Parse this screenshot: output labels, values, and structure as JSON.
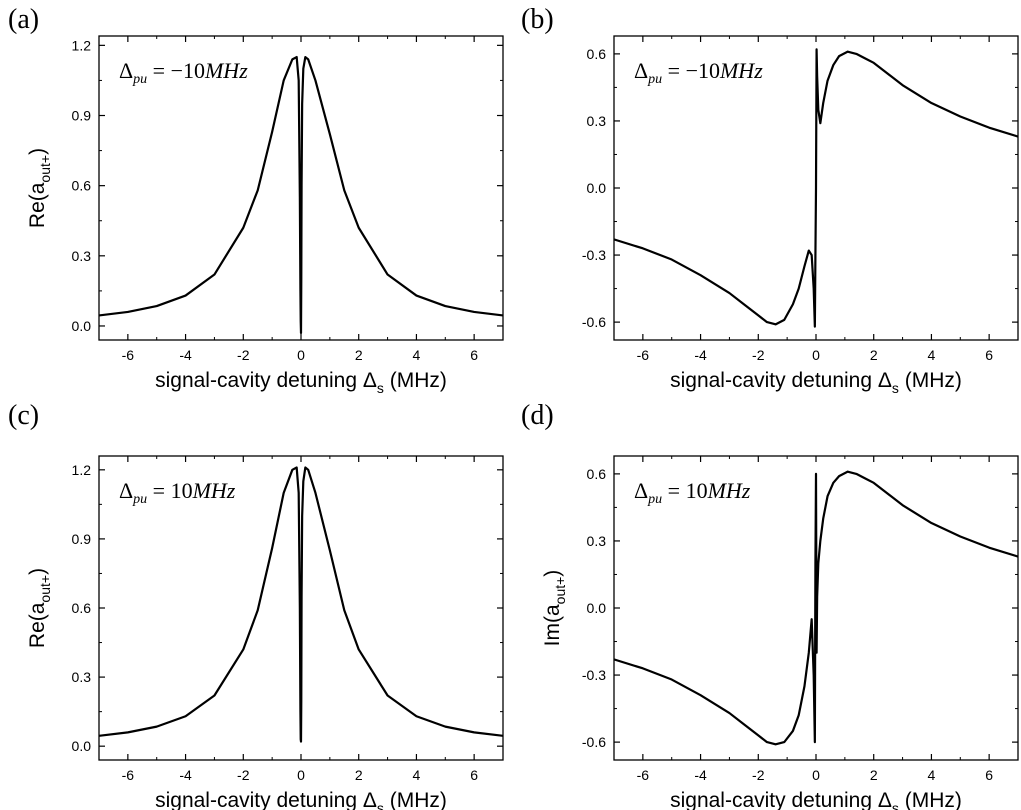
{
  "figure": {
    "axis_color": "#000000",
    "line_color": "#000000",
    "background": "#ffffff"
  },
  "chart_data": [
    {
      "panel_label": "(a)",
      "type": "line",
      "ylabel": "Re(a",
      "ylabel_sub": "out+",
      "ylabel_close": ")",
      "xlabel": "signal-cavity detuning Δ",
      "xlabel_sub": "s",
      "xlabel_unit": " (MHz)",
      "annotation": {
        "delta": "Δ",
        "sub": "pu",
        "text": " = −10",
        "unit": "MHz"
      },
      "xlim": [
        -7,
        7
      ],
      "ylim": [
        -0.06,
        1.24
      ],
      "xticks": [
        -6,
        -4,
        -2,
        0,
        2,
        4,
        6
      ],
      "xtick_labels": [
        "-6",
        "-4",
        "-2",
        "0",
        "2",
        "4",
        "6"
      ],
      "yticks": [
        0.0,
        0.3,
        0.6,
        0.9,
        1.2
      ],
      "ytick_labels": [
        "0.0",
        "0.3",
        "0.6",
        "0.9",
        "1.2"
      ],
      "series": [
        {
          "x": [
            -7,
            -6,
            -5,
            -4,
            -3,
            -2,
            -1.5,
            -1,
            -0.6,
            -0.3,
            -0.15,
            -0.08,
            -0.04,
            -0.02,
            -0.01,
            0,
            0.01,
            0.02,
            0.04,
            0.08,
            0.15,
            0.25,
            0.5,
            1,
            1.5,
            2,
            3,
            4,
            5,
            6,
            7
          ],
          "y": [
            0.045,
            0.06,
            0.085,
            0.13,
            0.22,
            0.42,
            0.58,
            0.83,
            1.05,
            1.14,
            1.15,
            1.05,
            0.55,
            0.15,
            0.02,
            -0.03,
            0.2,
            0.6,
            0.95,
            1.1,
            1.15,
            1.14,
            1.05,
            0.82,
            0.58,
            0.42,
            0.22,
            0.13,
            0.085,
            0.06,
            0.045
          ]
        }
      ]
    },
    {
      "panel_label": "(b)",
      "type": "line",
      "ylabel": "",
      "ylabel_sub": "",
      "ylabel_close": "",
      "xlabel": "signal-cavity detuning Δ",
      "xlabel_sub": "s",
      "xlabel_unit": " (MHz)",
      "annotation": {
        "delta": "Δ",
        "sub": "pu",
        "text": " = −10",
        "unit": "MHz"
      },
      "xlim": [
        -7,
        7
      ],
      "ylim": [
        -0.68,
        0.68
      ],
      "xticks": [
        -6,
        -4,
        -2,
        0,
        2,
        4,
        6
      ],
      "xtick_labels": [
        "-6",
        "-4",
        "-2",
        "0",
        "2",
        "4",
        "6"
      ],
      "yticks": [
        -0.6,
        -0.3,
        0.0,
        0.3,
        0.6
      ],
      "ytick_labels": [
        "-0.6",
        "-0.3",
        "0.0",
        "0.3",
        "0.6"
      ],
      "series": [
        {
          "x": [
            -7,
            -6,
            -5,
            -4,
            -3,
            -2.5,
            -2,
            -1.7,
            -1.4,
            -1.1,
            -0.8,
            -0.6,
            -0.4,
            -0.25,
            -0.15,
            -0.08,
            -0.04,
            -0.02,
            0,
            0.02,
            0.04,
            0.08,
            0.15,
            0.25,
            0.4,
            0.6,
            0.8,
            1.1,
            1.4,
            1.7,
            2,
            2.5,
            3,
            4,
            5,
            6,
            7
          ],
          "y": [
            -0.23,
            -0.27,
            -0.32,
            -0.39,
            -0.47,
            -0.52,
            -0.57,
            -0.6,
            -0.61,
            -0.59,
            -0.52,
            -0.45,
            -0.35,
            -0.28,
            -0.3,
            -0.45,
            -0.62,
            -0.3,
            0.0,
            0.62,
            0.5,
            0.35,
            0.29,
            0.38,
            0.48,
            0.55,
            0.59,
            0.61,
            0.6,
            0.58,
            0.56,
            0.51,
            0.46,
            0.38,
            0.32,
            0.27,
            0.23
          ]
        }
      ]
    },
    {
      "panel_label": "(c)",
      "type": "line",
      "ylabel": "Re(a",
      "ylabel_sub": "out+",
      "ylabel_close": ")",
      "xlabel": "signal-cavity detuning Δ",
      "xlabel_sub": "s",
      "xlabel_unit": " (MHz)",
      "annotation": {
        "delta": "Δ",
        "sub": "pu",
        "text": " = 10",
        "unit": "MHz"
      },
      "xlim": [
        -7,
        7
      ],
      "ylim": [
        -0.06,
        1.26
      ],
      "xticks": [
        -6,
        -4,
        -2,
        0,
        2,
        4,
        6
      ],
      "xtick_labels": [
        "-6",
        "-4",
        "-2",
        "0",
        "2",
        "4",
        "6"
      ],
      "yticks": [
        0.0,
        0.3,
        0.6,
        0.9,
        1.2
      ],
      "ytick_labels": [
        "0.0",
        "0.3",
        "0.6",
        "0.9",
        "1.2"
      ],
      "series": [
        {
          "x": [
            -7,
            -6,
            -5,
            -4,
            -3,
            -2,
            -1.5,
            -1,
            -0.6,
            -0.3,
            -0.15,
            -0.08,
            -0.04,
            -0.02,
            -0.01,
            0,
            0.01,
            0.02,
            0.04,
            0.08,
            0.15,
            0.25,
            0.5,
            1,
            1.5,
            2,
            3,
            4,
            5,
            6,
            7
          ],
          "y": [
            0.045,
            0.06,
            0.085,
            0.13,
            0.22,
            0.42,
            0.59,
            0.86,
            1.1,
            1.2,
            1.21,
            1.1,
            0.6,
            0.15,
            0.03,
            0.02,
            0.2,
            0.65,
            1.0,
            1.15,
            1.21,
            1.2,
            1.1,
            0.85,
            0.59,
            0.42,
            0.22,
            0.13,
            0.085,
            0.06,
            0.045
          ]
        }
      ]
    },
    {
      "panel_label": "(d)",
      "type": "line",
      "ylabel": "Im(a",
      "ylabel_sub": "out+",
      "ylabel_close": ")",
      "xlabel": "signal-cavity detuning Δ",
      "xlabel_sub": "s",
      "xlabel_unit": " (MHz)",
      "annotation": {
        "delta": "Δ",
        "sub": "pu",
        "text": " = 10",
        "unit": "MHz"
      },
      "xlim": [
        -7,
        7
      ],
      "ylim": [
        -0.68,
        0.68
      ],
      "xticks": [
        -6,
        -4,
        -2,
        0,
        2,
        4,
        6
      ],
      "xtick_labels": [
        "-6",
        "-4",
        "-2",
        "0",
        "2",
        "4",
        "6"
      ],
      "yticks": [
        -0.6,
        -0.3,
        0.0,
        0.3,
        0.6
      ],
      "ytick_labels": [
        "-0.6",
        "-0.3",
        "0.0",
        "0.3",
        "0.6"
      ],
      "series": [
        {
          "x": [
            -7,
            -6,
            -5,
            -4,
            -3,
            -2.5,
            -2,
            -1.7,
            -1.4,
            -1.1,
            -0.8,
            -0.6,
            -0.4,
            -0.25,
            -0.15,
            -0.08,
            -0.04,
            -0.02,
            0,
            0.02,
            0.04,
            0.08,
            0.15,
            0.25,
            0.4,
            0.6,
            0.8,
            1.1,
            1.4,
            1.7,
            2,
            2.5,
            3,
            4,
            5,
            6,
            7
          ],
          "y": [
            -0.23,
            -0.27,
            -0.32,
            -0.39,
            -0.47,
            -0.52,
            -0.57,
            -0.6,
            -0.61,
            -0.6,
            -0.55,
            -0.48,
            -0.35,
            -0.2,
            -0.05,
            -0.3,
            -0.6,
            0.2,
            0.6,
            -0.2,
            0.05,
            0.2,
            0.3,
            0.4,
            0.5,
            0.56,
            0.59,
            0.61,
            0.6,
            0.58,
            0.56,
            0.51,
            0.46,
            0.38,
            0.32,
            0.27,
            0.23
          ]
        }
      ]
    }
  ]
}
